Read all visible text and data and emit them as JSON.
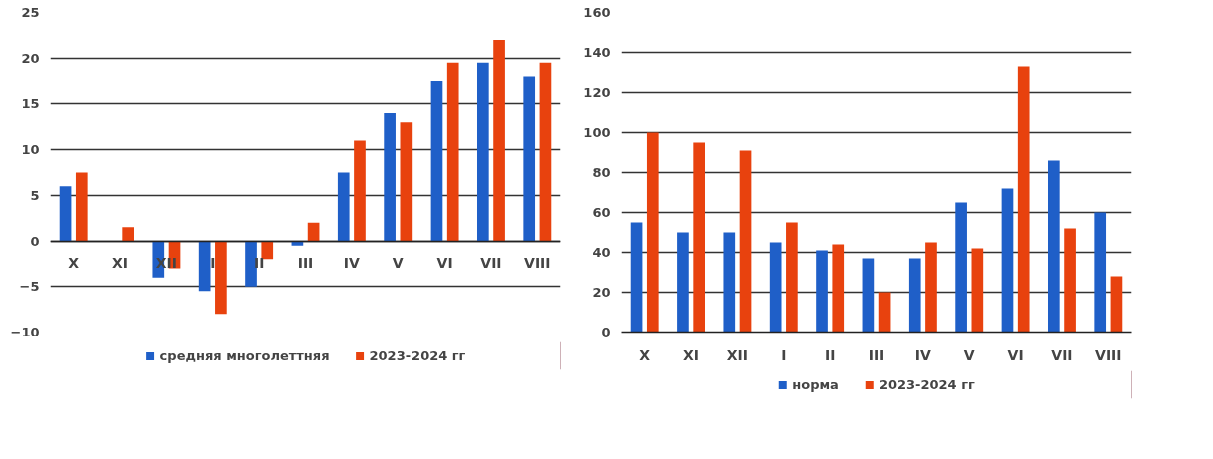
{
  "chart_data": [
    {
      "type": "bar",
      "categories": [
        "X",
        "XI",
        "XII",
        "I",
        "II",
        "III",
        "IV",
        "V",
        "VI",
        "VII",
        "VIII"
      ],
      "series": [
        {
          "name": "средняя многолеттняя",
          "color": "#1f5fc8",
          "values": [
            6,
            0,
            -4,
            -5.5,
            -5,
            -0.5,
            7.5,
            14,
            17.5,
            19.5,
            18
          ]
        },
        {
          "name": "2023-2024 гг",
          "color": "#e8420e",
          "values": [
            7.5,
            1.5,
            -3,
            -8,
            -2,
            2,
            11,
            13,
            19.5,
            22,
            19.5
          ]
        }
      ],
      "ylim": [
        -10,
        25
      ],
      "yticks": [
        -10,
        -5,
        0,
        5,
        10,
        15,
        20,
        25
      ],
      "grid": "y",
      "legend": "bottom"
    },
    {
      "type": "bar",
      "categories": [
        "X",
        "XI",
        "XII",
        "I",
        "II",
        "III",
        "IV",
        "V",
        "VI",
        "VII",
        "VIII"
      ],
      "series": [
        {
          "name": "норма",
          "color": "#1f5fc8",
          "values": [
            55,
            50,
            50,
            45,
            41,
            37,
            37,
            65,
            72,
            86,
            60
          ]
        },
        {
          "name": "2023-2024 гг",
          "color": "#e8420e",
          "values": [
            100,
            95,
            91,
            55,
            44,
            20,
            45,
            42,
            133,
            52,
            28
          ]
        }
      ],
      "ylim": [
        0,
        160
      ],
      "yticks": [
        0,
        20,
        40,
        60,
        80,
        100,
        120,
        140,
        160
      ],
      "grid": "y",
      "legend": "bottom"
    }
  ]
}
